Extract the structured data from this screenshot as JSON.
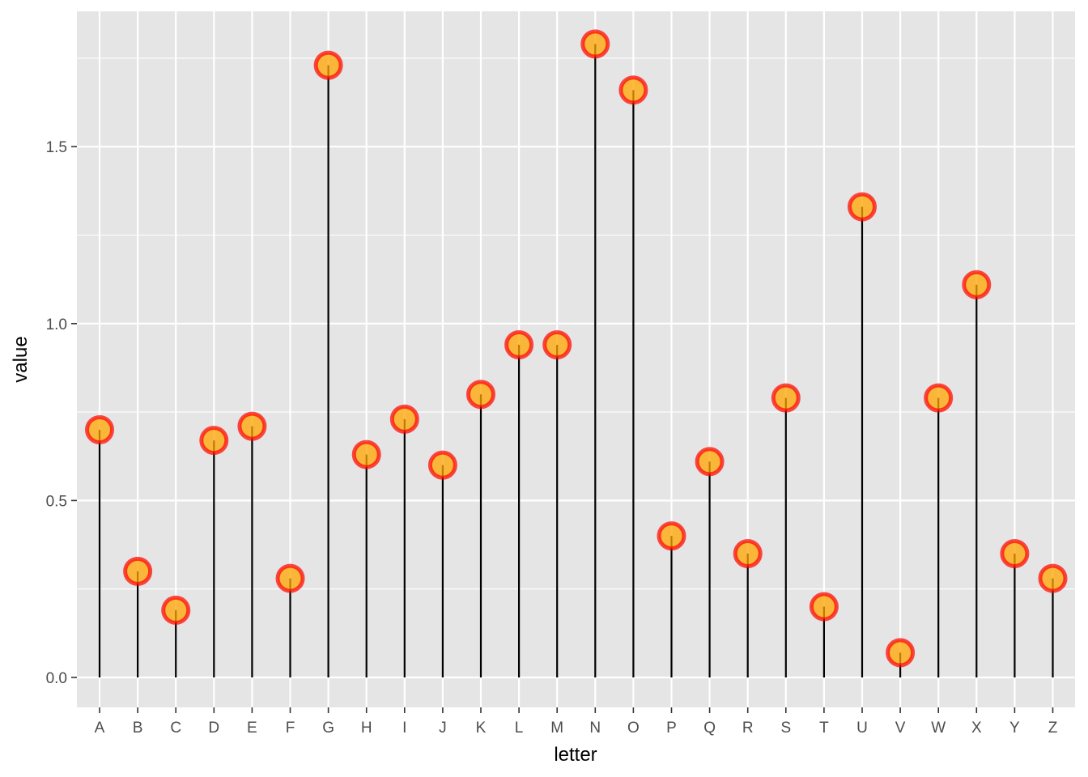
{
  "chart_data": {
    "type": "lollipop",
    "xlabel": "letter",
    "ylabel": "value",
    "categories": [
      "A",
      "B",
      "C",
      "D",
      "E",
      "F",
      "G",
      "H",
      "I",
      "J",
      "K",
      "L",
      "M",
      "N",
      "O",
      "P",
      "Q",
      "R",
      "S",
      "T",
      "U",
      "V",
      "W",
      "X",
      "Y",
      "Z"
    ],
    "values": [
      0.7,
      0.3,
      0.19,
      0.67,
      0.71,
      0.28,
      1.73,
      0.63,
      0.73,
      0.6,
      0.8,
      0.94,
      0.94,
      1.79,
      1.66,
      0.4,
      0.61,
      0.35,
      0.79,
      0.2,
      1.33,
      0.07,
      0.79,
      1.11,
      0.35,
      0.28
    ],
    "ylim": [
      -0.09,
      1.88
    ],
    "yticks": [
      0.0,
      0.5,
      1.0,
      1.5
    ],
    "ytick_labels": [
      "0.0",
      "0.5",
      "1.0",
      "1.5"
    ],
    "grid": true,
    "colors": {
      "panel": "#E5E5E5",
      "grid": "#FFFFFF",
      "stem": "#000000",
      "point_fill": "#FFA500",
      "point_stroke": "#FF0000"
    }
  }
}
